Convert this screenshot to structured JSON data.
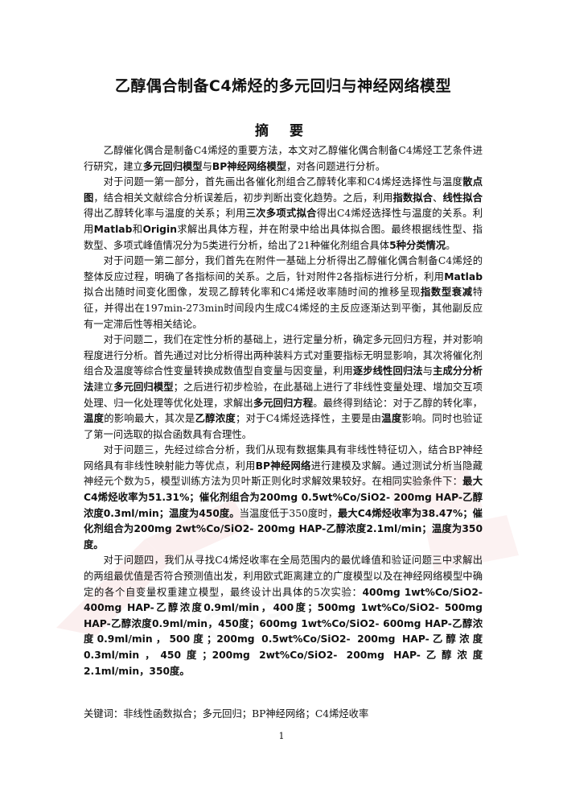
{
  "title": "乙醇偶合制备C4烯烃的多元回归与神经网络模型",
  "abstract_heading": "摘 要",
  "paragraphs": [
    [
      {
        "t": "乙醇催化偶合是制备C4烯烃的重要方法，本文对乙醇催化偶合制备C4烯烃工艺条件进行研究，建立",
        "b": false
      },
      {
        "t": "多元回归模型",
        "b": true
      },
      {
        "t": "与",
        "b": false
      },
      {
        "t": "BP神经网络模型",
        "b": true
      },
      {
        "t": "，对各问题进行分析。",
        "b": false
      }
    ],
    [
      {
        "t": "对于问题一第一部分，首先画出各催化剂组合乙醇转化率和C4烯烃选择性与温度",
        "b": false
      },
      {
        "t": "散点图",
        "b": true
      },
      {
        "t": "，结合相关文献综合分析误差后，初步判断出变化趋势。之后，利用",
        "b": false
      },
      {
        "t": "指数拟合",
        "b": true
      },
      {
        "t": "、",
        "b": false
      },
      {
        "t": "线性拟合",
        "b": true
      },
      {
        "t": "得出乙醇转化率与温度的关系；利用",
        "b": false
      },
      {
        "t": "三次多项式拟合",
        "b": true
      },
      {
        "t": "得出C4烯烃选择性与温度的关系。利用",
        "b": false
      },
      {
        "t": "Matlab",
        "b": true
      },
      {
        "t": "和",
        "b": false
      },
      {
        "t": "Origin",
        "b": true
      },
      {
        "t": "求解出具体方程，并在附录中给出具体拟合图。最终根据线性型、指数型、多项式峰值情况分为5类进行分析，给出了21种催化剂组合具体",
        "b": false
      },
      {
        "t": "5种分类情况",
        "b": true
      },
      {
        "t": "。",
        "b": false
      }
    ],
    [
      {
        "t": "对于问题一第二部分，我们首先在附件一基础上分析得出乙醇催化偶合制备C4烯烃的整体反应过程，明确了各指标间的关系。之后，针对附件2各指标进行分析，利用",
        "b": false
      },
      {
        "t": "Matlab",
        "b": true
      },
      {
        "t": "拟合出随时间变化图像，发现乙醇转化率和C4烯烃收率随时间的推移呈现",
        "b": false
      },
      {
        "t": "指数型衰减",
        "b": true
      },
      {
        "t": "特征，并得出在197min-273min时间段内生成C4烯烃的主反应逐渐达到平衡，其他副反应有一定滞后性等相关结论。",
        "b": false
      }
    ],
    [
      {
        "t": "对于问题二，我们在定性分析的基础上，进行定量分析，确定多元回归方程，并对影响程度进行分析。首先通过对比分析得出两种装料方式对重要指标无明显影响，其次将催化剂组合及温度等综合性变量转换成数值型自变量与因变量，利用",
        "b": false
      },
      {
        "t": "逐步线性回归法",
        "b": true
      },
      {
        "t": "与",
        "b": false
      },
      {
        "t": "主成分分析法",
        "b": true
      },
      {
        "t": "建立",
        "b": false
      },
      {
        "t": "多元回归模型",
        "b": true
      },
      {
        "t": "；之后进行初步检验，在此基础上进行了非线性变量处理、增加交互项处理、归一化处理等优化处理，求解出",
        "b": false
      },
      {
        "t": "多元回归方程",
        "b": true
      },
      {
        "t": "。最终得到结论：对于乙醇的转化率，",
        "b": false
      },
      {
        "t": "温度",
        "b": true
      },
      {
        "t": "的影响最大，其次是",
        "b": false
      },
      {
        "t": "乙醇浓度",
        "b": true
      },
      {
        "t": "；对于C4烯烃选择性，主要是由",
        "b": false
      },
      {
        "t": "温度",
        "b": true
      },
      {
        "t": "影响。同时也验证了第一问选取的拟合函数具有合理性。",
        "b": false
      }
    ],
    [
      {
        "t": "对于问题三，先经过综合分析，我们从现有数据集具有非线性特征切入，结合BP神经网络具有非线性映射能力等优点，利用",
        "b": false
      },
      {
        "t": "BP神经网络",
        "b": true
      },
      {
        "t": "进行建模及求解。通过测试分析当隐藏神经元个数为5，模型训练方法为贝叶斯正则化时求解效果较好。在相同实验条件下：",
        "b": false
      },
      {
        "t": "最大C4烯烃收率为51.31%；催化剂组合为200mg 0.5wt%Co/SiO2- 200mg HAP-乙醇浓度0.3ml/min；温度为450度。",
        "b": true
      },
      {
        "t": "当温度低于350度时，",
        "b": false
      },
      {
        "t": "最大C4烯烃收率为38.47%；催化剂组合为200mg 2wt%Co/SiO2- 200mg HAP-乙醇浓度2.1ml/min；温度为350度。",
        "b": true
      }
    ],
    [
      {
        "t": "对于问题四，我们从寻找C4烯烃收率在全局范围内的最优峰值和验证问题三中求解出的两组最优值是否符合预测值出发，利用欧式距离建立的广度模型以及在神经网络模型中确定的各个自变量权重建立模型，最终设计出具体的5次实验：",
        "b": false
      },
      {
        "t": "400mg 1wt%Co/SiO2- 400mg HAP-乙醇浓度0.9ml/min，400度；500mg 1wt%Co/SiO2- 500mg HAP-乙醇浓度0.9ml/min，450度；600mg 1wt%Co/SiO2- 600mg HAP-乙醇浓度0.9ml/min，500度；200mg 0.5wt%Co/SiO2- 200mg HAP-乙醇浓度0.3ml/min，450度；200mg 2wt%Co/SiO2- 200mg HAP-乙醇浓度2.1ml/min，350度。",
        "b": true
      }
    ]
  ],
  "keywords_label": "关键词：",
  "keywords": "非线性函数拟合；多元回归；BP神经网络；C4烯烃收率",
  "page_number": "1",
  "watermark_text": "dxs.m"
}
